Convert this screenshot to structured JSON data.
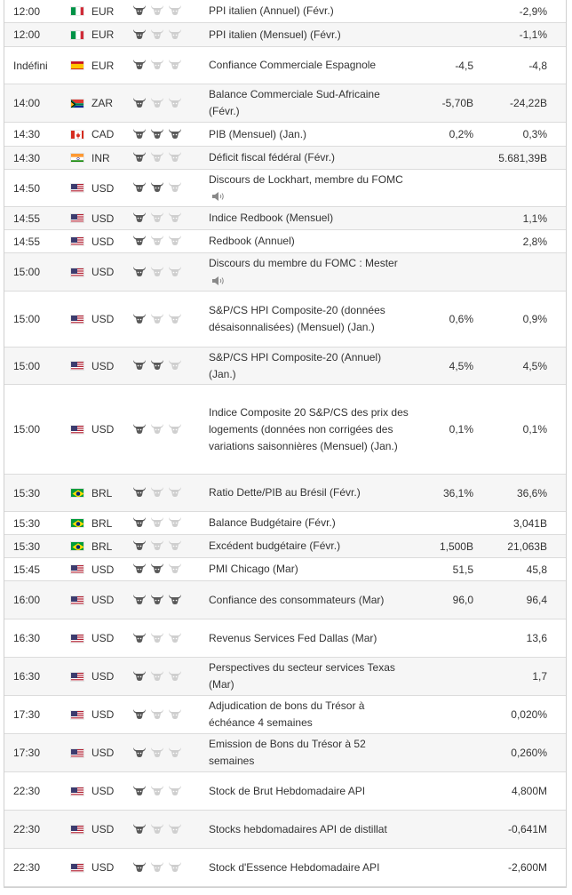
{
  "rows": [
    {
      "time": "12:00",
      "country": "it",
      "currency": "EUR",
      "importance": 1,
      "event": "PPI italien (Annuel) (Févr.)",
      "forecast": "",
      "previous": "-2,9%",
      "speech": false
    },
    {
      "time": "12:00",
      "country": "it",
      "currency": "EUR",
      "importance": 1,
      "event": "PPI italien (Mensuel) (Févr.)",
      "forecast": "",
      "previous": "-1,1%",
      "speech": false
    },
    {
      "time": "Indéfini",
      "country": "es",
      "currency": "EUR",
      "importance": 1,
      "event": "Confiance Commerciale Espagnole",
      "forecast": "-4,5",
      "previous": "-4,8",
      "speech": false
    },
    {
      "time": "14:00",
      "country": "za",
      "currency": "ZAR",
      "importance": 1,
      "event": "Balance Commerciale Sud-Africaine (Févr.)",
      "forecast": "-5,70B",
      "previous": "-24,22B",
      "speech": false
    },
    {
      "time": "14:30",
      "country": "ca",
      "currency": "CAD",
      "importance": 3,
      "event": "PIB (Mensuel) (Jan.)",
      "forecast": "0,2%",
      "previous": "0,3%",
      "speech": false
    },
    {
      "time": "14:30",
      "country": "in",
      "currency": "INR",
      "importance": 1,
      "event": "Déficit fiscal fédéral (Févr.)",
      "forecast": "",
      "previous": "5.681,39B",
      "speech": false
    },
    {
      "time": "14:50",
      "country": "us",
      "currency": "USD",
      "importance": 2,
      "event": "Discours de Lockhart, membre du FOMC",
      "forecast": "",
      "previous": "",
      "speech": true
    },
    {
      "time": "14:55",
      "country": "us",
      "currency": "USD",
      "importance": 1,
      "event": "Indice Redbook (Mensuel)",
      "forecast": "",
      "previous": "1,1%",
      "speech": false
    },
    {
      "time": "14:55",
      "country": "us",
      "currency": "USD",
      "importance": 1,
      "event": "Redbook (Annuel)",
      "forecast": "",
      "previous": "2,8%",
      "speech": false
    },
    {
      "time": "15:00",
      "country": "us",
      "currency": "USD",
      "importance": 1,
      "event": "Discours du membre du FOMC : Mester",
      "forecast": "",
      "previous": "",
      "speech": true
    },
    {
      "time": "15:00",
      "country": "us",
      "currency": "USD",
      "importance": 1,
      "event": "S&P/CS HPI Composite-20 (données désaisonnalisées) (Mensuel) (Jan.)",
      "forecast": "0,6%",
      "previous": "0,9%",
      "speech": false
    },
    {
      "time": "15:00",
      "country": "us",
      "currency": "USD",
      "importance": 2,
      "event": "S&P/CS HPI Composite-20 (Annuel) (Jan.)",
      "forecast": "4,5%",
      "previous": "4,5%",
      "speech": false
    },
    {
      "time": "15:00",
      "country": "us",
      "currency": "USD",
      "importance": 1,
      "event": "Indice Composite 20 S&P/CS des prix des logements (données non corrigées des variations saisonnières (Mensuel) (Jan.)",
      "forecast": "0,1%",
      "previous": "0,1%",
      "speech": false
    },
    {
      "time": "15:30",
      "country": "br",
      "currency": "BRL",
      "importance": 1,
      "event": "Ratio Dette/PIB au Brésil (Févr.)",
      "forecast": "36,1%",
      "previous": "36,6%",
      "speech": false
    },
    {
      "time": "15:30",
      "country": "br",
      "currency": "BRL",
      "importance": 1,
      "event": "Balance Budgétaire (Févr.)",
      "forecast": "",
      "previous": "3,041B",
      "speech": false
    },
    {
      "time": "15:30",
      "country": "br",
      "currency": "BRL",
      "importance": 1,
      "event": "Excédent budgétaire (Févr.)",
      "forecast": "1,500B",
      "previous": "21,063B",
      "speech": false
    },
    {
      "time": "15:45",
      "country": "us",
      "currency": "USD",
      "importance": 2,
      "event": "PMI Chicago (Mar)",
      "forecast": "51,5",
      "previous": "45,8",
      "speech": false
    },
    {
      "time": "16:00",
      "country": "us",
      "currency": "USD",
      "importance": 3,
      "event": "Confiance des consommateurs (Mar)",
      "forecast": "96,0",
      "previous": "96,4",
      "speech": false
    },
    {
      "time": "16:30",
      "country": "us",
      "currency": "USD",
      "importance": 1,
      "event": "Revenus Services Fed Dallas (Mar)",
      "forecast": "",
      "previous": "13,6",
      "speech": false
    },
    {
      "time": "16:30",
      "country": "us",
      "currency": "USD",
      "importance": 1,
      "event": "Perspectives du secteur services Texas (Mar)",
      "forecast": "",
      "previous": "1,7",
      "speech": false
    },
    {
      "time": "17:30",
      "country": "us",
      "currency": "USD",
      "importance": 1,
      "event": "Adjudication de bons du Trésor à échéance 4 semaines",
      "forecast": "",
      "previous": "0,020%",
      "speech": false
    },
    {
      "time": "17:30",
      "country": "us",
      "currency": "USD",
      "importance": 1,
      "event": "Emission de Bons du Trésor à 52 semaines",
      "forecast": "",
      "previous": "0,260%",
      "speech": false
    },
    {
      "time": "22:30",
      "country": "us",
      "currency": "USD",
      "importance": 1,
      "event": "Stock de Brut Hebdomadaire API",
      "forecast": "",
      "previous": "4,800M",
      "speech": false
    },
    {
      "time": "22:30",
      "country": "us",
      "currency": "USD",
      "importance": 1,
      "event": "Stocks hebdomadaires API de distillat",
      "forecast": "",
      "previous": "-0,641M",
      "speech": false
    },
    {
      "time": "22:30",
      "country": "us",
      "currency": "USD",
      "importance": 1,
      "event": "Stock d'Essence Hebdomadaire API",
      "forecast": "",
      "previous": "-2,600M",
      "speech": false
    }
  ],
  "colors": {
    "bull_active": "#5a5a5a",
    "bull_inactive": "#cfcfcf",
    "row_border": "#dcdcdc",
    "text": "#333333"
  }
}
